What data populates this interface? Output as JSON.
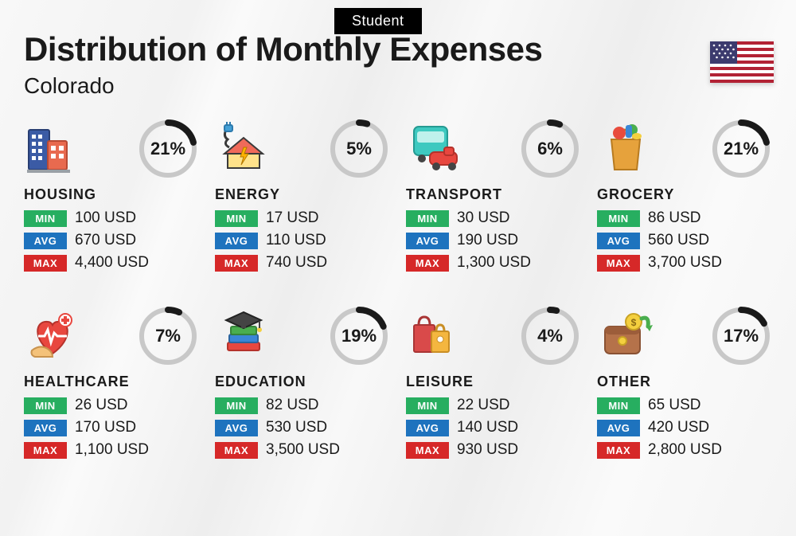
{
  "tag": "Student",
  "title": "Distribution of Monthly Expenses",
  "subtitle": "Colorado",
  "flag": {
    "stripe_red": "#b22234",
    "stripe_white": "#ffffff",
    "canton": "#3c3b6e"
  },
  "ring": {
    "radius": 33,
    "track_color": "#c8c8c8",
    "progress_color": "#1a1a1a",
    "track_width": 6,
    "progress_width": 8
  },
  "badges": {
    "min": {
      "label": "MIN",
      "bg": "#27ae60"
    },
    "avg": {
      "label": "AVG",
      "bg": "#1e73be"
    },
    "max": {
      "label": "MAX",
      "bg": "#d62828"
    }
  },
  "categories": [
    {
      "key": "housing",
      "label": "HOUSING",
      "icon": "housing",
      "percent": 21,
      "percent_label": "21%",
      "min": "100 USD",
      "avg": "670 USD",
      "max": "4,400 USD"
    },
    {
      "key": "energy",
      "label": "ENERGY",
      "icon": "energy",
      "percent": 5,
      "percent_label": "5%",
      "min": "17 USD",
      "avg": "110 USD",
      "max": "740 USD"
    },
    {
      "key": "transport",
      "label": "TRANSPORT",
      "icon": "transport",
      "percent": 6,
      "percent_label": "6%",
      "min": "30 USD",
      "avg": "190 USD",
      "max": "1,300 USD"
    },
    {
      "key": "grocery",
      "label": "GROCERY",
      "icon": "grocery",
      "percent": 21,
      "percent_label": "21%",
      "min": "86 USD",
      "avg": "560 USD",
      "max": "3,700 USD"
    },
    {
      "key": "healthcare",
      "label": "HEALTHCARE",
      "icon": "healthcare",
      "percent": 7,
      "percent_label": "7%",
      "min": "26 USD",
      "avg": "170 USD",
      "max": "1,100 USD"
    },
    {
      "key": "education",
      "label": "EDUCATION",
      "icon": "education",
      "percent": 19,
      "percent_label": "19%",
      "min": "82 USD",
      "avg": "530 USD",
      "max": "3,500 USD"
    },
    {
      "key": "leisure",
      "label": "LEISURE",
      "icon": "leisure",
      "percent": 4,
      "percent_label": "4%",
      "min": "22 USD",
      "avg": "140 USD",
      "max": "930 USD"
    },
    {
      "key": "other",
      "label": "OTHER",
      "icon": "other",
      "percent": 17,
      "percent_label": "17%",
      "min": "65 USD",
      "avg": "420 USD",
      "max": "2,800 USD"
    }
  ]
}
